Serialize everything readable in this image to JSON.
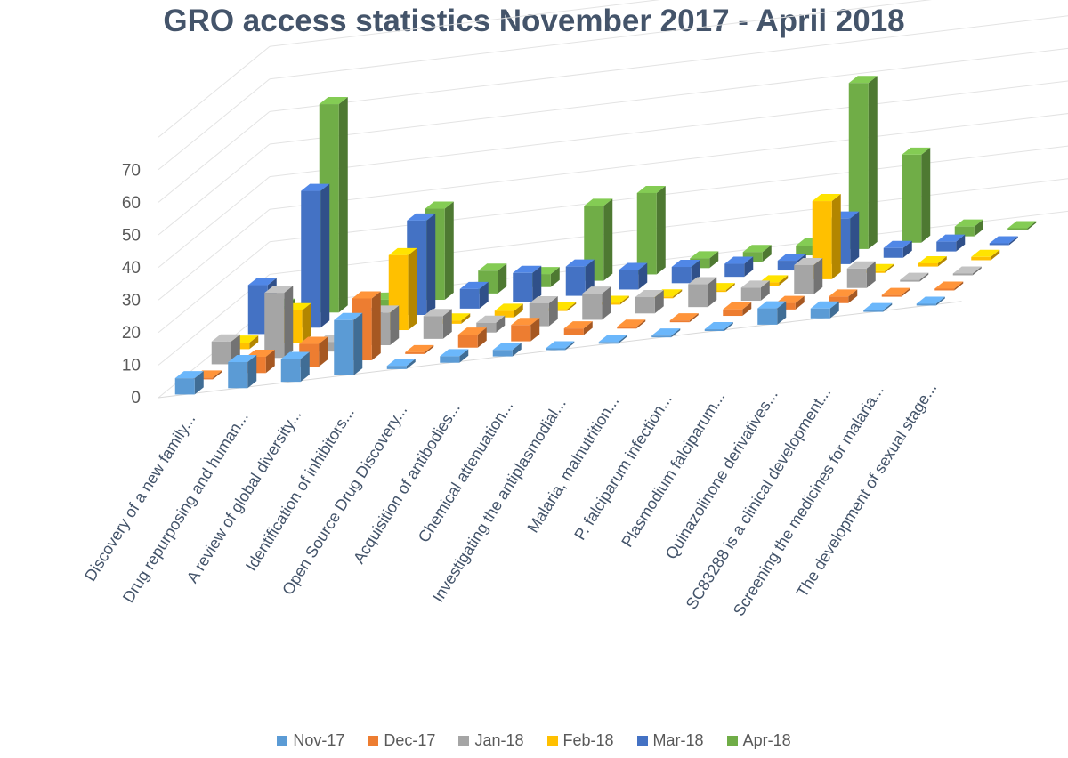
{
  "chart_data": {
    "type": "bar",
    "subtype": "3d-column",
    "title": "GRO access statistics November 2017 - April 2018",
    "categories": [
      "Discovery of a new family...",
      "Drug repurposing and human...",
      "A review of global diversity...",
      "Identification of inhibitors...",
      "Open Source Drug Discovery...",
      "Acquisition of antibodies...",
      "Chemical attenuation...",
      "Investigating the antiplasmodial...",
      "Malaria, malnutrition...",
      "P. falciparum infection...",
      "Plasmodium falciparum...",
      "Quinazolinone derivatives...",
      "SC83288 is a clinical development...",
      "Screening the medicines for malaria...",
      "The development of sexual stage..."
    ],
    "series": [
      {
        "name": "Nov-17",
        "color": "#5b9bd5",
        "values": [
          5,
          8,
          7,
          17,
          1,
          2,
          2,
          0,
          0,
          0,
          0,
          5,
          3,
          0,
          0
        ]
      },
      {
        "name": "Dec-17",
        "color": "#ed7d31",
        "values": [
          0,
          5,
          7,
          19,
          0,
          4,
          5,
          2,
          0,
          0,
          2,
          2,
          2,
          0,
          0
        ]
      },
      {
        "name": "Jan-18",
        "color": "#a5a5a5",
        "values": [
          7,
          20,
          3,
          10,
          7,
          3,
          7,
          8,
          5,
          7,
          4,
          9,
          6,
          0,
          0
        ]
      },
      {
        "name": "Feb-18",
        "color": "#ffc000",
        "values": [
          2,
          10,
          1,
          23,
          1,
          2,
          0,
          0,
          0,
          0,
          1,
          24,
          0,
          1,
          1
        ]
      },
      {
        "name": "Mar-18",
        "color": "#4472c4",
        "values": [
          15,
          42,
          2,
          29,
          6,
          9,
          9,
          6,
          5,
          4,
          3,
          14,
          3,
          3,
          0
        ]
      },
      {
        "name": "Apr-18",
        "color": "#70ad47",
        "values": [
          4,
          64,
          2,
          28,
          7,
          4,
          23,
          25,
          3,
          3,
          3,
          51,
          27,
          3,
          0
        ]
      }
    ],
    "y_ticks": [
      "0",
      "10",
      "20",
      "30",
      "40",
      "50",
      "60",
      "70"
    ],
    "ylim": [
      0,
      80
    ],
    "xlabel": "",
    "ylabel": "",
    "grid": true,
    "legend_position": "bottom"
  }
}
